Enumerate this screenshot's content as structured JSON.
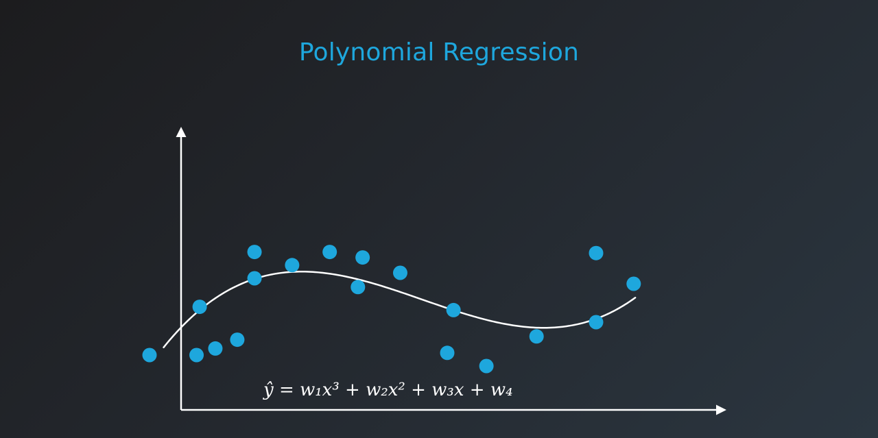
{
  "slide": {
    "title": "Polynomial Regression"
  },
  "chart_data": {
    "type": "scatter",
    "title": "Polynomial Regression",
    "xlabel": "",
    "ylabel": "",
    "axis_ticks": false,
    "grid": false,
    "point_color": "#1ea7dd",
    "curve_color": "#ffffff",
    "axis_color": "#ffffff",
    "xlim": [
      -2.0,
      36.0
    ],
    "ylim": [
      0.0,
      25.0
    ],
    "points": [
      {
        "x": -2.0,
        "y": 5.0
      },
      {
        "x": 1.2,
        "y": 9.4
      },
      {
        "x": 1.0,
        "y": 5.0
      },
      {
        "x": 2.2,
        "y": 5.6
      },
      {
        "x": 3.6,
        "y": 6.4
      },
      {
        "x": 4.7,
        "y": 12.0
      },
      {
        "x": 4.7,
        "y": 14.4
      },
      {
        "x": 7.1,
        "y": 13.2
      },
      {
        "x": 9.5,
        "y": 14.4
      },
      {
        "x": 11.3,
        "y": 11.2
      },
      {
        "x": 11.6,
        "y": 13.9
      },
      {
        "x": 14.0,
        "y": 12.5
      },
      {
        "x": 17.0,
        "y": 5.2
      },
      {
        "x": 17.4,
        "y": 9.1
      },
      {
        "x": 19.5,
        "y": 4.0
      },
      {
        "x": 22.7,
        "y": 6.7
      },
      {
        "x": 26.5,
        "y": 8.0
      },
      {
        "x": 26.5,
        "y": 14.3
      },
      {
        "x": 28.9,
        "y": 11.5
      }
    ],
    "fit_curve": {
      "degree": 3,
      "coefficients": {
        "a3": 0.00278,
        "a2": -0.12875,
        "a1": 1.49,
        "a0": 7.5
      },
      "x_range": [
        -1.1,
        29.0
      ]
    },
    "annotations": [
      {
        "id": "model-equation",
        "text": "ŷ = w₁x³ + w₂x² + w₃x + w₄"
      }
    ]
  }
}
